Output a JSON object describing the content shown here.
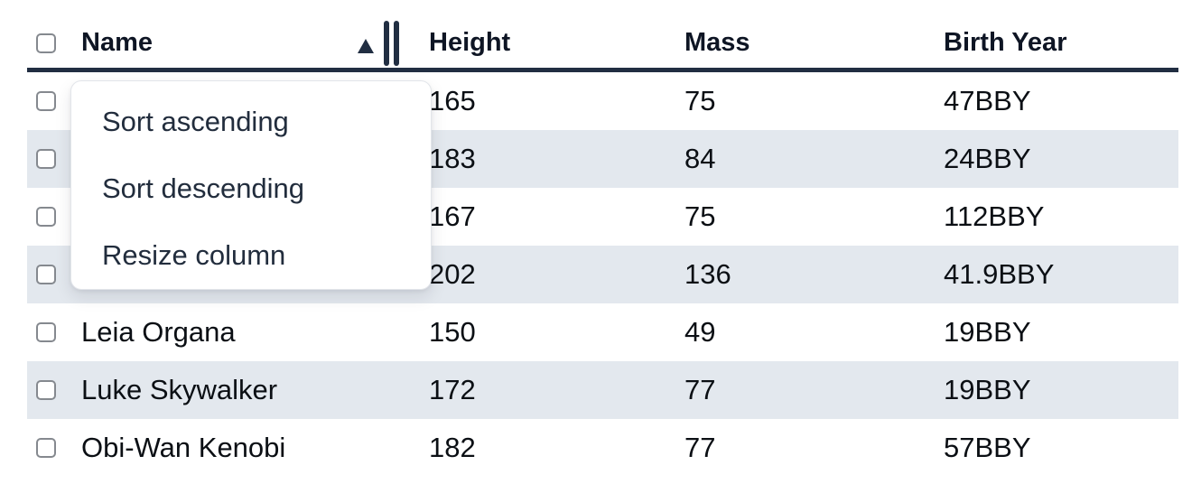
{
  "table": {
    "columns": [
      {
        "key": "name",
        "label": "Name"
      },
      {
        "key": "height",
        "label": "Height"
      },
      {
        "key": "mass",
        "label": "Mass"
      },
      {
        "key": "birth_year",
        "label": "Birth Year"
      }
    ],
    "sort": {
      "column": "Name",
      "direction": "ascending",
      "indicator_icon": "sort-ascending-triangle"
    },
    "rows": [
      {
        "name": "",
        "height": "165",
        "mass": "75",
        "birth_year": "47BBY"
      },
      {
        "name": "",
        "height": "183",
        "mass": "84",
        "birth_year": "24BBY"
      },
      {
        "name": "",
        "height": "167",
        "mass": "75",
        "birth_year": "112BBY"
      },
      {
        "name": "",
        "height": "202",
        "mass": "136",
        "birth_year": "41.9BBY"
      },
      {
        "name": "Leia Organa",
        "height": "150",
        "mass": "49",
        "birth_year": "19BBY"
      },
      {
        "name": "Luke Skywalker",
        "height": "172",
        "mass": "77",
        "birth_year": "19BBY"
      },
      {
        "name": "Obi-Wan Kenobi",
        "height": "182",
        "mass": "77",
        "birth_year": "57BBY"
      }
    ]
  },
  "context_menu": {
    "items": [
      {
        "label": "Sort ascending"
      },
      {
        "label": "Sort descending"
      },
      {
        "label": "Resize column"
      }
    ]
  },
  "icons": {
    "sort_ascending": "filled-up-triangle",
    "resize_handle": "double-vertical-bars"
  },
  "colors": {
    "accent_navy": "#212e42",
    "row_stripe": "#e3e8ee",
    "text": "#0b0f14",
    "checkbox_border": "#85898f"
  }
}
